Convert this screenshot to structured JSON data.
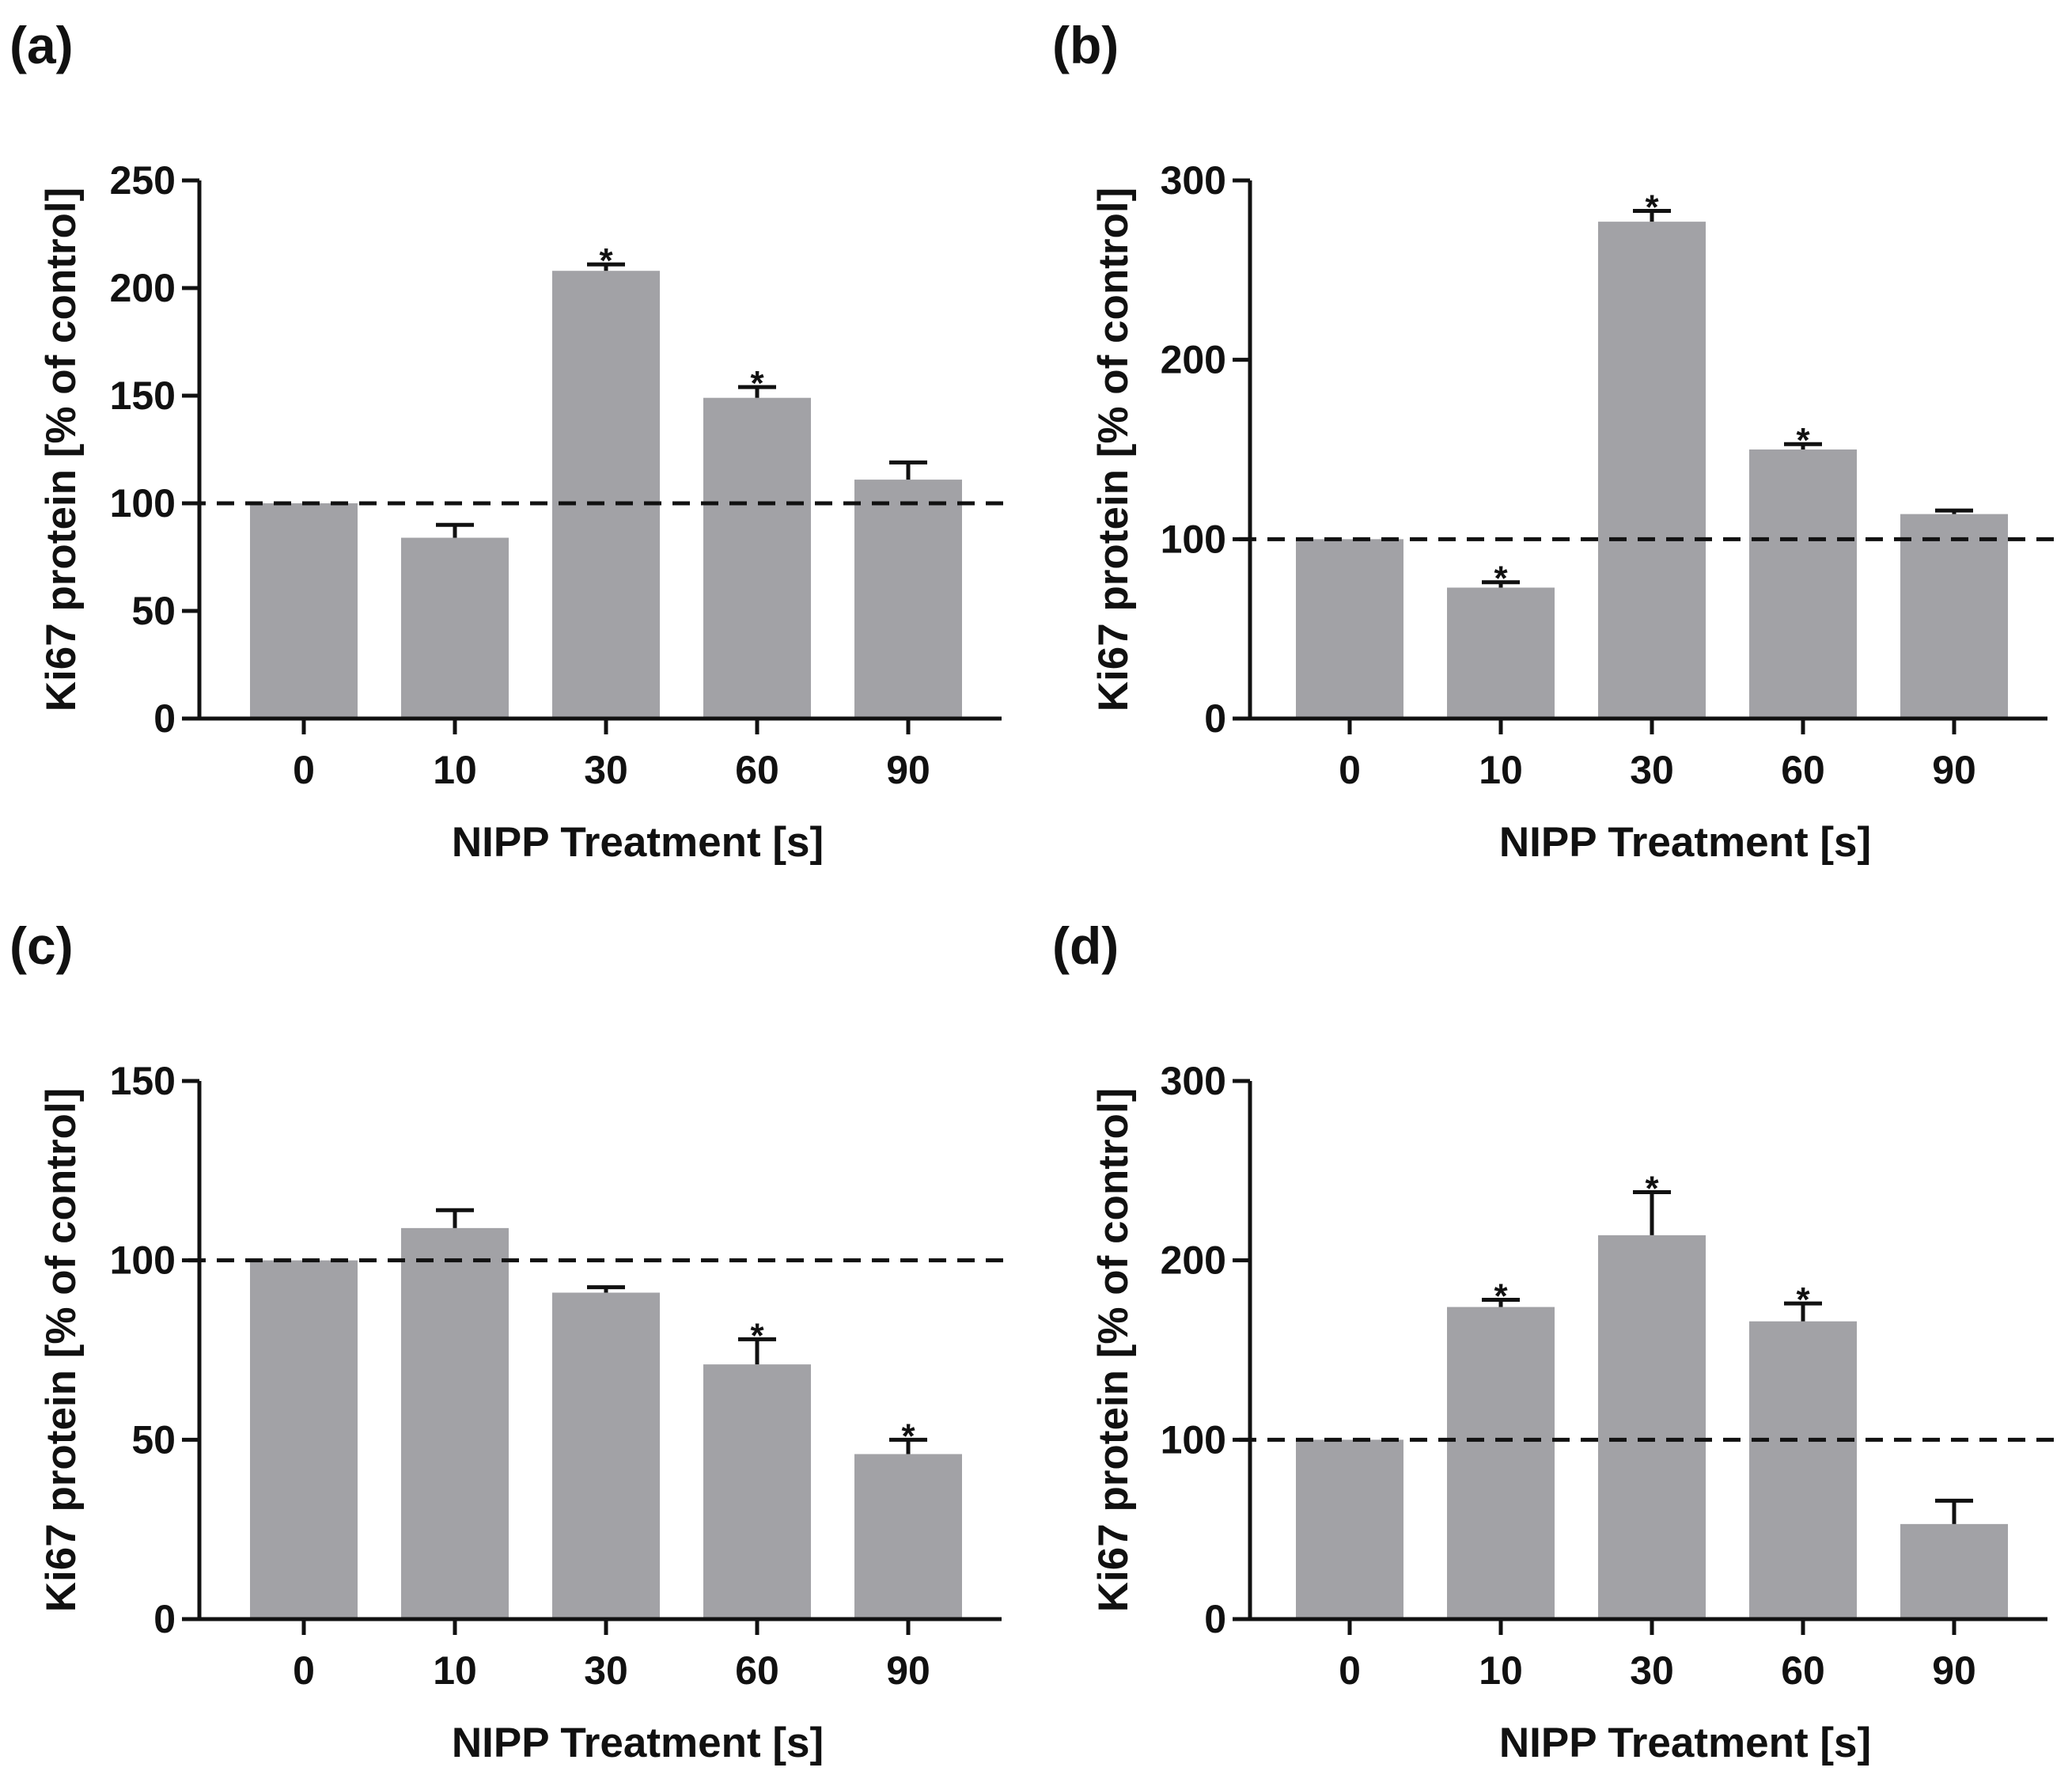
{
  "colors": {
    "bar": "#a2a2a6",
    "axis": "#111111",
    "background": "#ffffff"
  },
  "chart_data": [
    {
      "panel": "(a)",
      "type": "bar",
      "categories": [
        "0",
        "10",
        "30",
        "60",
        "90"
      ],
      "values": [
        100,
        84,
        208,
        149,
        111
      ],
      "errors": [
        0,
        6,
        3,
        5,
        8
      ],
      "significant": [
        "",
        "",
        "*",
        "*",
        ""
      ],
      "xlabel": "NIPP Treatment [s]",
      "ylabel": "Ki67 protein [% of control]",
      "ylim": [
        0,
        250
      ],
      "yticks": [
        0,
        50,
        100,
        150,
        200,
        250
      ],
      "reference_line": 100
    },
    {
      "panel": "(b)",
      "type": "bar",
      "categories": [
        "0",
        "10",
        "30",
        "60",
        "90"
      ],
      "values": [
        100,
        73,
        277,
        150,
        114
      ],
      "errors": [
        0,
        3,
        6,
        3,
        2
      ],
      "significant": [
        "",
        "*",
        "*",
        "*",
        ""
      ],
      "xlabel": "NIPP Treatment [s]",
      "ylabel": "Ki67 protein [% of control]",
      "ylim": [
        0,
        300
      ],
      "yticks": [
        0,
        100,
        200,
        300
      ],
      "reference_line": 100
    },
    {
      "panel": "(c)",
      "type": "bar",
      "categories": [
        "0",
        "10",
        "30",
        "60",
        "90"
      ],
      "values": [
        100,
        109,
        91,
        71,
        46
      ],
      "errors": [
        0,
        5,
        1.5,
        7,
        4
      ],
      "significant": [
        "",
        "",
        "",
        "*",
        "*"
      ],
      "xlabel": "NIPP Treatment [s]",
      "ylabel": "Ki67 protein [% of control]",
      "ylim": [
        0,
        150
      ],
      "yticks": [
        0,
        50,
        100,
        150
      ],
      "reference_line": 100
    },
    {
      "panel": "(d)",
      "type": "bar",
      "categories": [
        "0",
        "10",
        "30",
        "60",
        "90"
      ],
      "values": [
        100,
        174,
        214,
        166,
        53
      ],
      "errors": [
        0,
        4,
        24,
        10,
        13
      ],
      "significant": [
        "",
        "*",
        "*",
        "*",
        ""
      ],
      "xlabel": "NIPP Treatment [s]",
      "ylabel": "Ki67 protein [% of control]",
      "ylim": [
        0,
        300
      ],
      "yticks": [
        0,
        100,
        200,
        300
      ],
      "reference_line": 100
    }
  ]
}
